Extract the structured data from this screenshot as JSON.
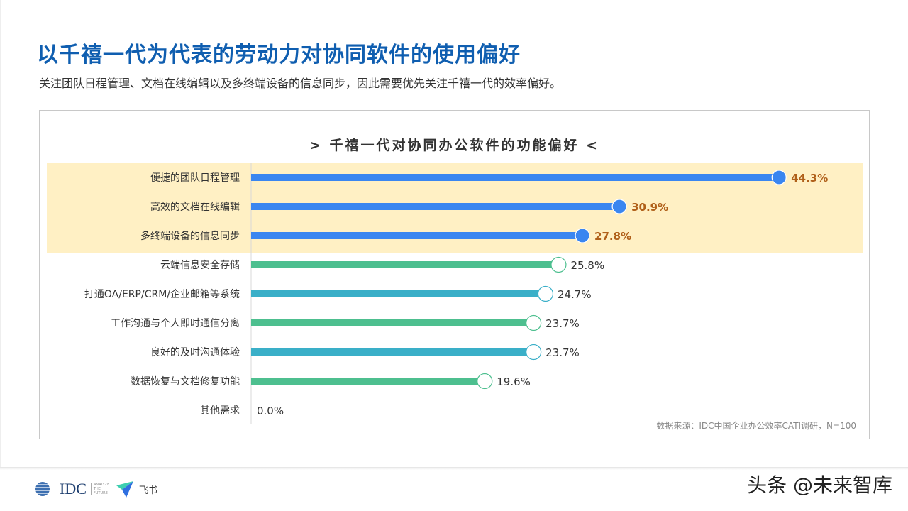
{
  "header": {
    "title": "以千禧一代为代表的劳动力对协同软件的使用偏好",
    "subtitle": "关注团队日程管理、文档在线编辑以及多终端设备的信息同步，因此需要优先关注千禧一代的效率偏好。"
  },
  "chart_data": {
    "type": "bar",
    "orientation": "horizontal",
    "title": ">  千禧一代对协同办公软件的功能偏好  <",
    "categories": [
      "便捷的团队日程管理",
      "高效的文档在线编辑",
      "多终端设备的信息同步",
      "云端信息安全存储",
      "打通OA/ERP/CRM/企业邮箱等系统",
      "工作沟通与个人即时通信分离",
      "良好的及时沟通体验",
      "数据恢复与文档修复功能",
      "其他需求"
    ],
    "values": [
      44.3,
      30.9,
      27.8,
      25.8,
      24.7,
      23.7,
      23.7,
      19.6,
      0.0
    ],
    "labels": [
      "44.3%",
      "30.9%",
      "27.8%",
      "25.8%",
      "24.7%",
      "23.7%",
      "23.7%",
      "19.6%",
      "0.0%"
    ],
    "highlighted": [
      0,
      1,
      2
    ],
    "colors": {
      "highlight": "#3a86f0",
      "green": "#4dbf8f",
      "teal": "#3aafc8",
      "highlight_band": "#fff0c4",
      "highlight_label": "#b0601a"
    },
    "xlim": [
      0,
      50
    ],
    "grid": false,
    "source": "数据来源：IDC中国企业办公效率CATI调研，N=100"
  },
  "footer": {
    "logo_idc": "IDC",
    "logo_idc_tag": "ANALYZE THE FUTURE",
    "logo_feishu": "飞书",
    "watermark": "头条 @未来智库"
  }
}
